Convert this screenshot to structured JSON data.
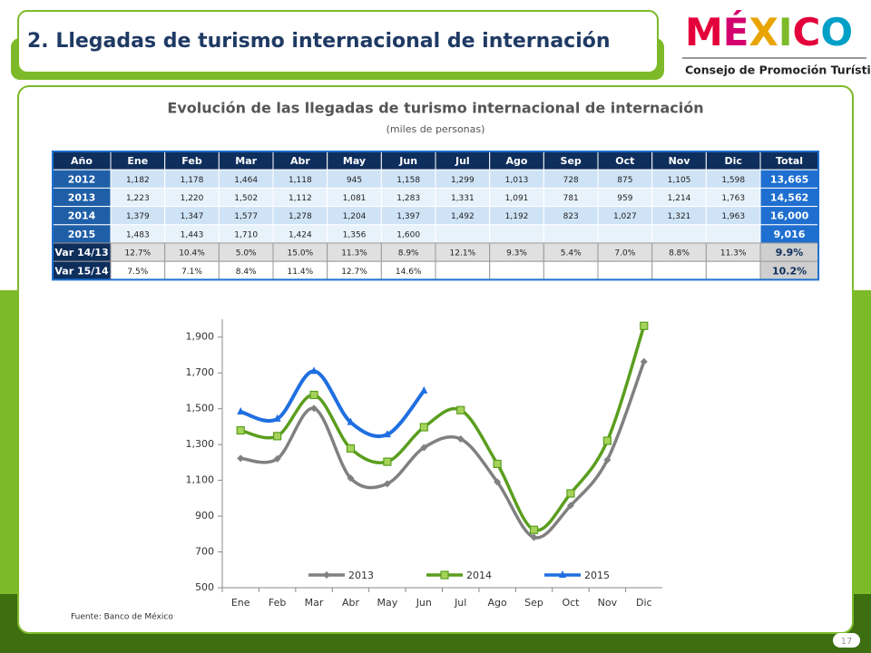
{
  "header": {
    "title": "2. Llegadas de turismo internacional de internación",
    "logo": "MÉXICO",
    "logo_subtitle": "Consejo de Promoción Turística"
  },
  "table": {
    "title": "Evolución de las llegadas de turismo internacional de internación",
    "subtitle": "(miles de personas)",
    "columns": [
      "Año",
      "Ene",
      "Feb",
      "Mar",
      "Abr",
      "May",
      "Jun",
      "Jul",
      "Ago",
      "Sep",
      "Oct",
      "Nov",
      "Dic",
      "Total"
    ],
    "rows": [
      [
        "2012",
        "1,182",
        "1,178",
        "1,464",
        "1,118",
        "945",
        "1,158",
        "1,299",
        "1,013",
        "728",
        "875",
        "1,105",
        "1,598",
        "13,665"
      ],
      [
        "2013",
        "1,223",
        "1,220",
        "1,502",
        "1,112",
        "1,081",
        "1,283",
        "1,331",
        "1,091",
        "781",
        "959",
        "1,214",
        "1,763",
        "14,562"
      ],
      [
        "2014",
        "1,379",
        "1,347",
        "1,577",
        "1,278",
        "1,204",
        "1,397",
        "1,492",
        "1,192",
        "823",
        "1,027",
        "1,321",
        "1,963",
        "16,000"
      ],
      [
        "2015",
        "1,483",
        "1,443",
        "1,710",
        "1,424",
        "1,356",
        "1,600",
        null,
        null,
        null,
        null,
        null,
        null,
        "9,016"
      ],
      [
        "Var 14/13",
        "12.7%",
        "10.4%",
        "5.0%",
        "15.0%",
        "11.3%",
        "8.9%",
        "12.1%",
        "9.3%",
        "5.4%",
        "7.0%",
        "8.8%",
        "11.3%",
        "9.9%"
      ],
      [
        "Var 15/14",
        "7.5%",
        "7.1%",
        "8.4%",
        "11.4%",
        "12.7%",
        "14.6%",
        null,
        null,
        null,
        null,
        null,
        null,
        "10.2%"
      ]
    ]
  },
  "chart_data": {
    "type": "line",
    "categories": [
      "Ene",
      "Feb",
      "Mar",
      "Abr",
      "May",
      "Jun",
      "Jul",
      "Ago",
      "Sep",
      "Oct",
      "Nov",
      "Dic"
    ],
    "series": [
      {
        "name": "2013",
        "color": "#808080",
        "marker": "diamond",
        "values": [
          1223,
          1220,
          1502,
          1112,
          1081,
          1283,
          1331,
          1091,
          781,
          959,
          1214,
          1763
        ]
      },
      {
        "name": "2014",
        "color": "#5a9e1e",
        "marker": "square",
        "values": [
          1379,
          1347,
          1577,
          1278,
          1204,
          1397,
          1492,
          1192,
          823,
          1027,
          1321,
          1963
        ]
      },
      {
        "name": "2015",
        "color": "#1f6fe0",
        "marker": "triangle",
        "values": [
          1483,
          1443,
          1710,
          1424,
          1356,
          1600,
          null,
          null,
          null,
          null,
          null,
          null
        ]
      }
    ],
    "ylim": [
      500,
      2000
    ],
    "yticks": [
      500,
      700,
      900,
      {
        "value": 1100,
        "label": "1,100"
      },
      {
        "value": 1300,
        "label": "1,300"
      },
      {
        "value": 1500,
        "label": "1,500"
      },
      {
        "value": 1700,
        "label": "1,700"
      },
      {
        "value": 1900,
        "label": "1,900"
      }
    ],
    "legend": "bottom"
  },
  "source": "Fuente: Banco de México",
  "page_number": "17"
}
